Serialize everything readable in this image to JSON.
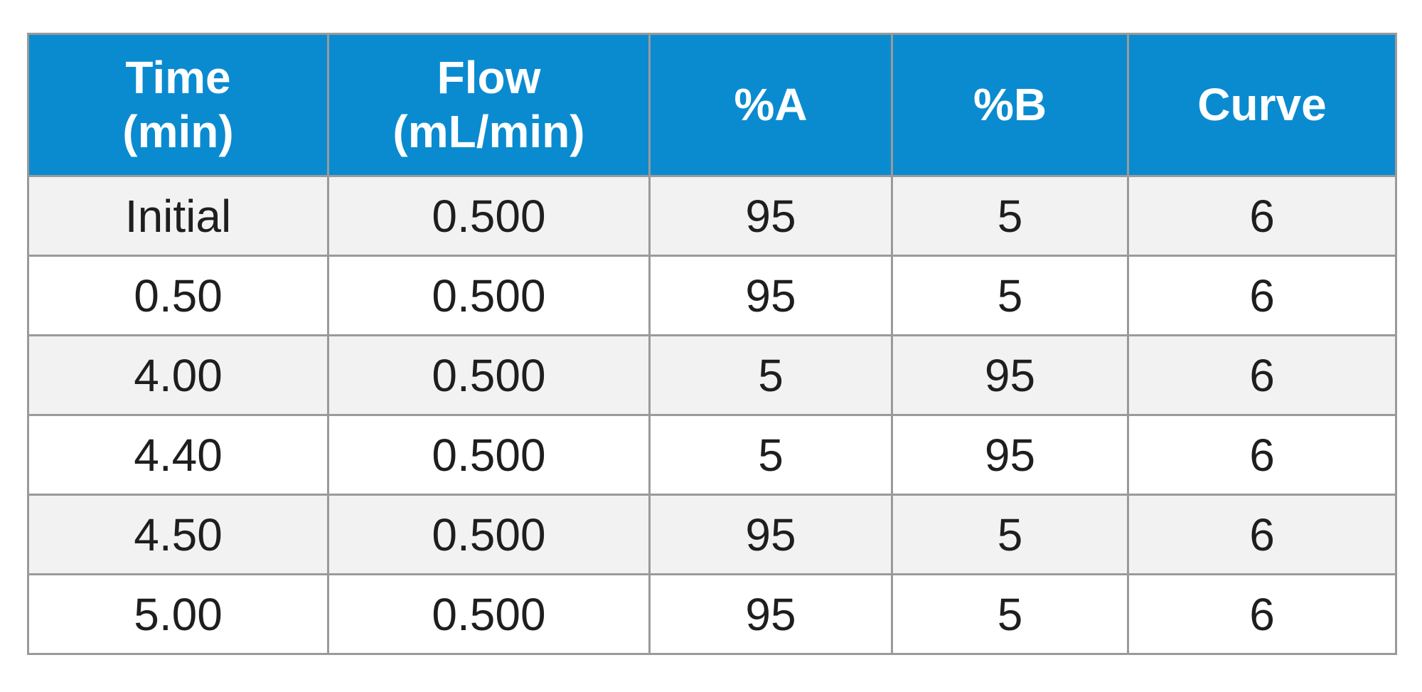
{
  "table": {
    "header_color": "#0a8bd0",
    "columns": [
      {
        "line1": "Time",
        "line2": "(min)"
      },
      {
        "line1": "Flow",
        "line2": "(mL/min)"
      },
      {
        "line1": "%A",
        "line2": ""
      },
      {
        "line1": "%B",
        "line2": ""
      },
      {
        "line1": "Curve",
        "line2": ""
      }
    ],
    "rows": [
      [
        "Initial",
        "0.500",
        "95",
        "5",
        "6"
      ],
      [
        "0.50",
        "0.500",
        "95",
        "5",
        "6"
      ],
      [
        "4.00",
        "0.500",
        "5",
        "95",
        "6"
      ],
      [
        "4.40",
        "0.500",
        "5",
        "95",
        "6"
      ],
      [
        "4.50",
        "0.500",
        "95",
        "5",
        "6"
      ],
      [
        "5.00",
        "0.500",
        "95",
        "5",
        "6"
      ]
    ]
  }
}
